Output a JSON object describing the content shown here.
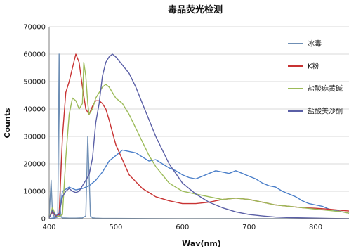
{
  "chart_data": {
    "type": "line",
    "title": "毒品荧光检测",
    "xlabel": "Wav(nm)",
    "ylabel": "Counts",
    "xlim": [
      400,
      850
    ],
    "ylim": [
      0,
      70000
    ],
    "x_ticks": [
      "400",
      "500",
      "600",
      "700",
      "800"
    ],
    "y_ticks": [
      "0",
      "10000",
      "20000",
      "30000",
      "40000",
      "50000",
      "60000",
      "70000"
    ],
    "grid": true,
    "legend": "right",
    "series": [
      {
        "name": "冰毒",
        "color": "#6f8fb5",
        "x": [
          400,
          403,
          405,
          408,
          410,
          413,
          415,
          417,
          418,
          420,
          430,
          440,
          450,
          455,
          458,
          460,
          462,
          465,
          470,
          480,
          500,
          550,
          600,
          650,
          700,
          750,
          800,
          850
        ],
        "y": [
          800,
          14000,
          2000,
          600,
          400,
          1500,
          60000,
          3000,
          600,
          300,
          200,
          200,
          300,
          1000,
          30000,
          16000,
          1000,
          300,
          200,
          100,
          100,
          50,
          0,
          0,
          0,
          0,
          0,
          0
        ]
      },
      {
        "name": "K粉",
        "color": "#c83232",
        "x": [
          400,
          405,
          410,
          415,
          420,
          425,
          430,
          435,
          440,
          445,
          450,
          455,
          460,
          465,
          470,
          475,
          480,
          485,
          490,
          500,
          520,
          540,
          560,
          580,
          600,
          620,
          640,
          660,
          680,
          700,
          720,
          740,
          760,
          780,
          800,
          820,
          840,
          850
        ],
        "y": [
          300,
          2500,
          800,
          1500,
          30000,
          46000,
          50000,
          55000,
          60000,
          57000,
          48000,
          40000,
          38000,
          41000,
          43000,
          43000,
          42000,
          40000,
          36000,
          27000,
          16000,
          11000,
          8000,
          6500,
          5500,
          5500,
          6000,
          7000,
          7500,
          7000,
          6000,
          5000,
          4500,
          4000,
          3800,
          3500,
          3000,
          2800
        ]
      },
      {
        "name": "盐酸麻黄碱",
        "color": "#9cbb59",
        "x": [
          400,
          405,
          410,
          415,
          420,
          425,
          430,
          435,
          440,
          445,
          450,
          452,
          455,
          458,
          460,
          465,
          470,
          475,
          480,
          485,
          490,
          495,
          500,
          510,
          520,
          530,
          540,
          550,
          560,
          570,
          580,
          600,
          620,
          640,
          660,
          680,
          700,
          720,
          740,
          760,
          780,
          800,
          820,
          840,
          850
        ],
        "y": [
          200,
          4000,
          1200,
          800,
          1500,
          22000,
          38000,
          44000,
          43000,
          40000,
          42000,
          57000,
          52000,
          42000,
          38000,
          40000,
          44000,
          46000,
          48000,
          49000,
          48000,
          46000,
          44000,
          42000,
          38000,
          33000,
          28000,
          23000,
          19000,
          16000,
          13000,
          10000,
          9000,
          8000,
          7000,
          7500,
          7000,
          6000,
          5000,
          4500,
          4000,
          3500,
          3000,
          2500,
          2000
        ]
      },
      {
        "name": "盐酸美沙酮",
        "color": "#5a5fa6",
        "x": [
          400,
          405,
          410,
          415,
          420,
          425,
          430,
          435,
          440,
          445,
          450,
          455,
          460,
          465,
          470,
          475,
          480,
          485,
          490,
          495,
          500,
          510,
          520,
          530,
          540,
          550,
          560,
          580,
          600,
          620,
          640,
          660,
          680,
          700,
          720,
          740,
          760,
          780,
          800,
          820,
          840,
          850
        ],
        "y": [
          200,
          3000,
          1000,
          2000,
          8000,
          10000,
          11000,
          10000,
          9500,
          10000,
          12000,
          14000,
          16000,
          22000,
          35000,
          42000,
          52000,
          57000,
          59000,
          60000,
          59000,
          56000,
          53000,
          48000,
          42000,
          36000,
          30000,
          20000,
          13000,
          9000,
          6000,
          4000,
          2500,
          1500,
          1000,
          600,
          400,
          300,
          200,
          100,
          50,
          0
        ]
      },
      {
        "name": "",
        "color": "#4b7fc9",
        "x": [
          400,
          410,
          415,
          420,
          430,
          440,
          450,
          460,
          470,
          480,
          490,
          500,
          510,
          520,
          530,
          540,
          550,
          560,
          570,
          580,
          590,
          600,
          610,
          620,
          630,
          640,
          650,
          660,
          670,
          680,
          690,
          700,
          710,
          720,
          730,
          740,
          750,
          760,
          770,
          780,
          790,
          800,
          810,
          820,
          830,
          840,
          850
        ],
        "y": [
          0,
          400,
          800,
          10000,
          11500,
          10500,
          11000,
          12000,
          14000,
          17000,
          21000,
          23000,
          25000,
          24500,
          24000,
          22500,
          21000,
          21500,
          20000,
          18500,
          17500,
          16000,
          15000,
          14500,
          15500,
          16500,
          17500,
          17000,
          16500,
          17500,
          16500,
          15500,
          14500,
          13000,
          12000,
          11500,
          10000,
          9000,
          8000,
          6500,
          5500,
          5000,
          4500,
          3500,
          3000,
          2500,
          2000
        ]
      }
    ]
  }
}
